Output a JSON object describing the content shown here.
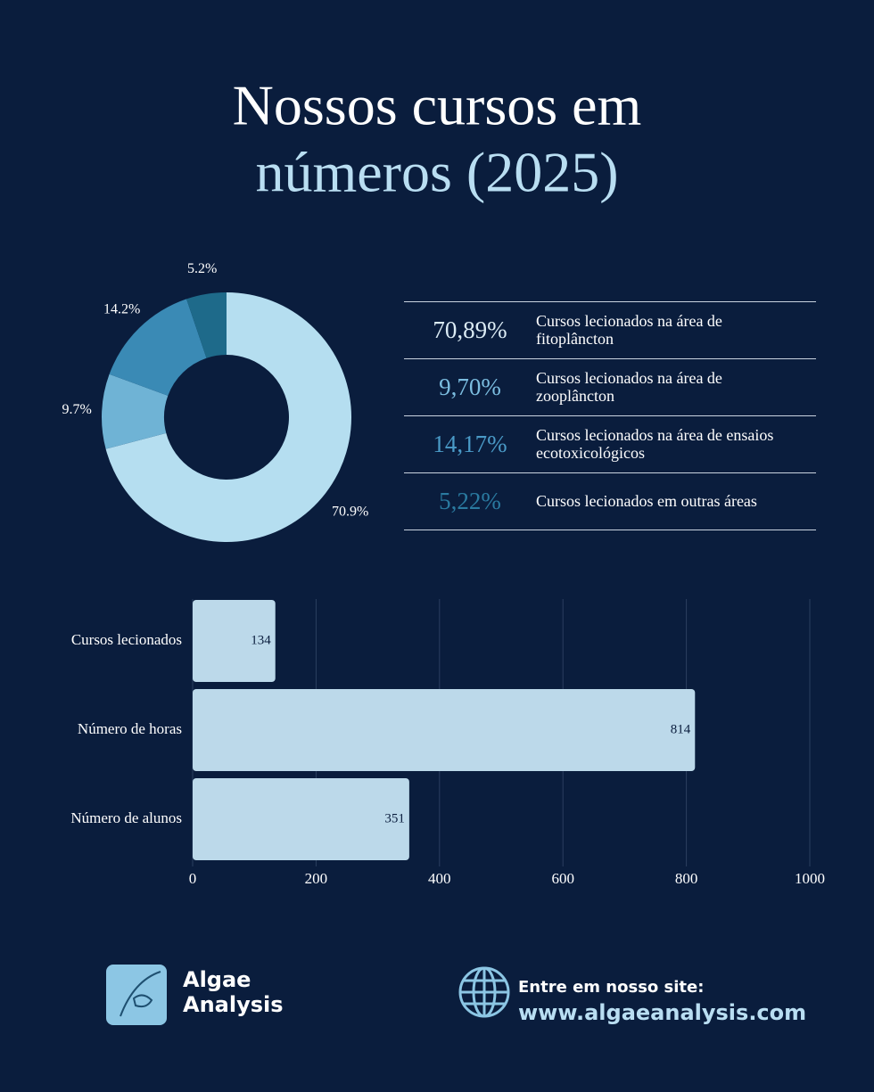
{
  "title": {
    "line1": "Nossos cursos em",
    "line2": "números (2025)"
  },
  "chart_data": [
    {
      "type": "donut",
      "values": [
        70.9,
        9.7,
        14.2,
        5.2
      ],
      "value_labels": [
        "70.9%",
        "9.7%",
        "14.2%",
        "5.2%"
      ],
      "colors": [
        "#b5def0",
        "#6fb3d5",
        "#3a8ab5",
        "#1e6a8a"
      ]
    },
    {
      "type": "bar",
      "orientation": "horizontal",
      "categories": [
        "Cursos lecionados",
        "Número de horas",
        "Número de alunos"
      ],
      "values": [
        134,
        814,
        351
      ],
      "color": "#bcd9ea",
      "xlim": [
        0,
        1000
      ],
      "xticks": [
        0,
        200,
        400,
        600,
        800,
        1000
      ],
      "grid": true
    }
  ],
  "table": {
    "rows": [
      {
        "value": "70,89%",
        "label": "Cursos lecionados na área de fitoplâncton",
        "color": "#dcecf5"
      },
      {
        "value": "9,70%",
        "label": "Cursos lecionados na área de zooplâncton",
        "color": "#7bbde0"
      },
      {
        "value": "14,17%",
        "label": "Cursos lecionados na área de ensaios ecotoxicológicos",
        "color": "#4a9ac7"
      },
      {
        "value": "5,22%",
        "label": "Cursos lecionados em outras áreas",
        "color": "#2a7aa0"
      }
    ]
  },
  "footer": {
    "brand": "Algae Analysis",
    "site_label": "Entre em nosso site:",
    "site_url": "www.algaeanalysis.com"
  }
}
